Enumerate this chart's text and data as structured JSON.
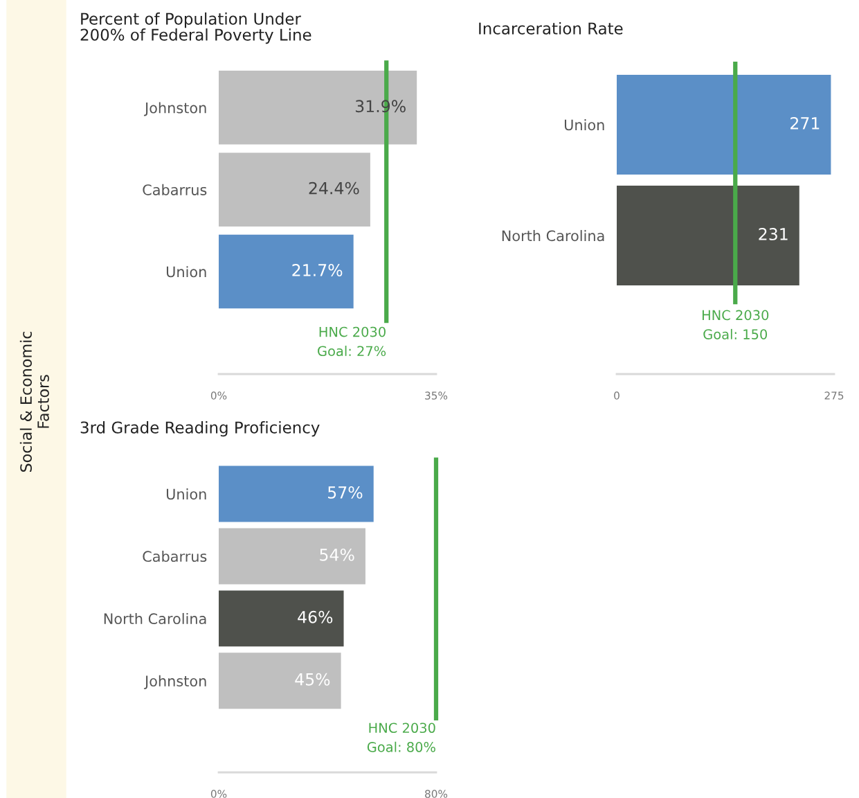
{
  "chart_data": [
    {
      "type": "bar",
      "orientation": "horizontal",
      "title": "Percent of Population Under\n200% of Federal Poverty Line",
      "categories": [
        "Johnston",
        "Cabarrus",
        "Union"
      ],
      "values": [
        31.9,
        24.4,
        21.7
      ],
      "colors": [
        "#bfbfbf",
        "#bfbfbf",
        "#5b8fc7"
      ],
      "value_labels": [
        "31.9%",
        "24.4%",
        "21.7%"
      ],
      "xlim": [
        0,
        35
      ],
      "xticks": [
        {
          "value": 0,
          "label": "0%"
        },
        {
          "value": 35,
          "label": "35%"
        }
      ],
      "ref_lines": [
        {
          "axis": "x",
          "value": 27,
          "label": "HNC 2030\nGoal: 27%",
          "color": "#4aaa4a"
        }
      ],
      "annotations": [
        "Social & Economic\nFactors"
      ],
      "grid": false,
      "legend": false
    },
    {
      "type": "bar",
      "orientation": "horizontal",
      "title": "Incarceration Rate",
      "categories": [
        "Union",
        "North Carolina"
      ],
      "values": [
        271,
        231
      ],
      "colors": [
        "#5b8fc7",
        "#4f514c"
      ],
      "data_labels": true,
      "xlim": [
        0,
        275
      ],
      "xticks": [
        0,
        275
      ],
      "ref_lines": [
        {
          "axis": "x",
          "value": 150,
          "label": "HNC 2030\nGoal: 150",
          "color": "#4aaa4a"
        }
      ],
      "grid": false,
      "legend": false
    },
    {
      "type": "bar",
      "orientation": "horizontal",
      "title": "3rd Grade Reading Proficiency",
      "categories": [
        "Union",
        "Cabarrus",
        "North Carolina",
        "Johnston"
      ],
      "values": [
        57,
        54,
        46,
        45
      ],
      "colors": [
        "#5b8fc7",
        "#bfbfbf",
        "#4f514c",
        "#bfbfbf"
      ],
      "value_labels": [
        "57%",
        "54%",
        "46%",
        "45%"
      ],
      "xlim": [
        0,
        80
      ],
      "xticks": [
        {
          "value": 0,
          "label": "0%"
        },
        {
          "value": 80,
          "label": "80%"
        }
      ],
      "ref_lines": [
        {
          "axis": "x",
          "value": 80,
          "label": "HNC 2030\nGoal: 80%",
          "color": "#4aaa4a"
        }
      ],
      "grid": false,
      "legend": false
    }
  ]
}
